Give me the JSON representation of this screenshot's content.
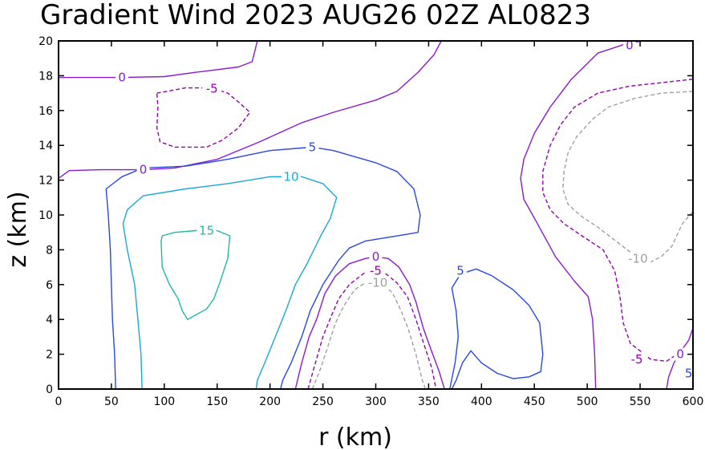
{
  "chart_data": {
    "type": "contour",
    "title": "Gradient Wind 2023 AUG26 02Z  AL0823",
    "xlabel": "r (km)",
    "ylabel": "z (km)",
    "xlim": [
      0,
      600
    ],
    "ylim": [
      0,
      20
    ],
    "xticks": [
      "0",
      "50",
      "100",
      "150",
      "200",
      "250",
      "300",
      "350",
      "400",
      "450",
      "500",
      "550",
      "600"
    ],
    "yticks": [
      "0",
      "2",
      "4",
      "6",
      "8",
      "10",
      "12",
      "14",
      "16",
      "18",
      "20"
    ],
    "grid": false,
    "colors": {
      "-10": "#a0a0a0",
      "-5": "#9400b0",
      "0": "#8a1ad0",
      "5": "#2848e0",
      "10": "#18a8d8",
      "15": "#20b8a8"
    },
    "contours": [
      {
        "level": 0,
        "label": "0",
        "dashed": false,
        "points": [
          [
            0,
            17.9
          ],
          [
            30,
            17.9
          ],
          [
            60,
            17.9
          ],
          [
            100,
            17.95
          ],
          [
            130,
            18.2
          ],
          [
            170,
            18.5
          ],
          [
            183,
            18.8
          ],
          [
            186,
            19.5
          ],
          [
            188,
            20
          ]
        ]
      },
      {
        "level": 0,
        "label": "0",
        "dashed": false,
        "points": [
          [
            0,
            12.1
          ],
          [
            10,
            12.55
          ],
          [
            40,
            12.6
          ],
          [
            80,
            12.6
          ],
          [
            110,
            12.7
          ],
          [
            150,
            13.2
          ],
          [
            190,
            14.2
          ],
          [
            230,
            15.3
          ],
          [
            260,
            15.9
          ],
          [
            300,
            16.6
          ],
          [
            320,
            17.1
          ],
          [
            340,
            18.2
          ],
          [
            355,
            19.2
          ],
          [
            362,
            20
          ]
        ]
      },
      {
        "level": -5,
        "label": "-5",
        "dashed": true,
        "points": [
          [
            93,
            17
          ],
          [
            120,
            17.3
          ],
          [
            145,
            17.3
          ],
          [
            160,
            17
          ],
          [
            170,
            16.5
          ],
          [
            181,
            15.9
          ],
          [
            170,
            15
          ],
          [
            155,
            14.3
          ],
          [
            140,
            13.9
          ],
          [
            110,
            13.9
          ],
          [
            96,
            14.2
          ],
          [
            93,
            15
          ],
          [
            94,
            16.2
          ],
          [
            93,
            17
          ]
        ]
      },
      {
        "level": 5,
        "label": "5",
        "dashed": false,
        "points": [
          [
            54,
            0
          ],
          [
            53,
            2
          ],
          [
            51,
            4
          ],
          [
            50,
            6
          ],
          [
            49,
            8
          ],
          [
            47,
            10
          ],
          [
            45,
            11.5
          ],
          [
            60,
            12.2
          ],
          [
            80,
            12.7
          ],
          [
            120,
            12.8
          ],
          [
            160,
            13.2
          ],
          [
            200,
            13.7
          ],
          [
            240,
            13.9
          ],
          [
            260,
            13.7
          ],
          [
            300,
            13.0
          ],
          [
            320,
            12.5
          ],
          [
            336,
            11.5
          ],
          [
            342,
            10
          ],
          [
            340,
            9.0
          ],
          [
            330,
            8.9
          ],
          [
            290,
            8.5
          ],
          [
            275,
            8.1
          ],
          [
            265,
            7.4
          ],
          [
            250,
            6.0
          ],
          [
            238,
            4.5
          ],
          [
            230,
            3.0
          ],
          [
            220,
            1.5
          ],
          [
            212,
            0.5
          ],
          [
            210,
            0
          ]
        ]
      },
      {
        "level": 10,
        "label": "10",
        "dashed": false,
        "points": [
          [
            79,
            0
          ],
          [
            78,
            2
          ],
          [
            75,
            4
          ],
          [
            72,
            6
          ],
          [
            65,
            8
          ],
          [
            61,
            9.5
          ],
          [
            65,
            10.3
          ],
          [
            80,
            11.1
          ],
          [
            120,
            11.5
          ],
          [
            160,
            11.8
          ],
          [
            200,
            12.2
          ],
          [
            230,
            12.2
          ],
          [
            250,
            11.8
          ],
          [
            263,
            11
          ],
          [
            257,
            9.8
          ],
          [
            248,
            8.8
          ],
          [
            235,
            7.2
          ],
          [
            224,
            6
          ],
          [
            215,
            4.5
          ],
          [
            205,
            3
          ],
          [
            195,
            1.5
          ],
          [
            188,
            0.5
          ],
          [
            187,
            0
          ]
        ]
      },
      {
        "level": 15,
        "label": "15",
        "dashed": false,
        "points": [
          [
            98,
            8.8
          ],
          [
            110,
            9
          ],
          [
            130,
            9.1
          ],
          [
            150,
            9.1
          ],
          [
            162,
            8.8
          ],
          [
            160,
            7.5
          ],
          [
            153,
            6.2
          ],
          [
            147,
            5.2
          ],
          [
            140,
            4.6
          ],
          [
            122,
            4.0
          ],
          [
            117,
            4.5
          ],
          [
            113,
            5.2
          ],
          [
            105,
            6
          ],
          [
            98,
            7
          ],
          [
            97,
            8.5
          ],
          [
            98,
            8.8
          ]
        ]
      },
      {
        "level": 0,
        "label": "0",
        "dashed": false,
        "points": [
          [
            224,
            0
          ],
          [
            230,
            1.5
          ],
          [
            237,
            3
          ],
          [
            244,
            4
          ],
          [
            252,
            5.5
          ],
          [
            262,
            6.5
          ],
          [
            275,
            7.2
          ],
          [
            290,
            7.5
          ],
          [
            300,
            7.6
          ],
          [
            312,
            7.5
          ],
          [
            322,
            7.0
          ],
          [
            332,
            6
          ],
          [
            338,
            5
          ],
          [
            345,
            3.5
          ],
          [
            352,
            2.3
          ],
          [
            360,
            1
          ],
          [
            365,
            0
          ]
        ]
      },
      {
        "level": -5,
        "label": "-5",
        "dashed": true,
        "points": [
          [
            236,
            0
          ],
          [
            242,
            1.3
          ],
          [
            250,
            3
          ],
          [
            258,
            4.2
          ],
          [
            265,
            5.2
          ],
          [
            275,
            6
          ],
          [
            290,
            6.7
          ],
          [
            300,
            6.8
          ],
          [
            310,
            6.6
          ],
          [
            320,
            6.1
          ],
          [
            330,
            5.3
          ],
          [
            338,
            4.0
          ],
          [
            346,
            2.5
          ],
          [
            353,
            1.2
          ],
          [
            357,
            0
          ]
        ]
      },
      {
        "level": -10,
        "label": "-10",
        "dashed": true,
        "points": [
          [
            240,
            0
          ],
          [
            248,
            1.2
          ],
          [
            255,
            2.5
          ],
          [
            262,
            3.8
          ],
          [
            270,
            4.8
          ],
          [
            280,
            5.7
          ],
          [
            290,
            6.1
          ],
          [
            300,
            6.2
          ],
          [
            308,
            6.0
          ],
          [
            316,
            5.5
          ],
          [
            324,
            4.5
          ],
          [
            331,
            3.4
          ],
          [
            338,
            2.0
          ],
          [
            344,
            0.5
          ],
          [
            347,
            0
          ]
        ]
      },
      {
        "level": 5,
        "label": "5",
        "dashed": false,
        "points": [
          [
            370,
            0
          ],
          [
            375,
            1.5
          ],
          [
            378,
            3
          ],
          [
            376,
            4.5
          ],
          [
            372,
            5.8
          ],
          [
            380,
            6.6
          ],
          [
            395,
            6.9
          ],
          [
            410,
            6.5
          ],
          [
            430,
            5.7
          ],
          [
            445,
            4.8
          ],
          [
            455,
            3.8
          ],
          [
            458,
            2
          ],
          [
            456,
            1
          ],
          [
            445,
            0.7
          ],
          [
            430,
            0.6
          ],
          [
            415,
            0.9
          ],
          [
            400,
            1.5
          ],
          [
            390,
            2.2
          ],
          [
            382,
            1.5
          ],
          [
            376,
            0.5
          ],
          [
            372,
            0
          ]
        ]
      },
      {
        "level": 0,
        "label": "0",
        "dashed": false,
        "points": [
          [
            552,
            20
          ],
          [
            535,
            19.8
          ],
          [
            510,
            19.3
          ],
          [
            485,
            17.8
          ],
          [
            465,
            16.2
          ],
          [
            450,
            14.7
          ],
          [
            440,
            13.2
          ],
          [
            437,
            12.1
          ],
          [
            440,
            10.9
          ],
          [
            452,
            9.6
          ],
          [
            470,
            7.6
          ],
          [
            488,
            6.2
          ],
          [
            501,
            5.3
          ],
          [
            505,
            4
          ],
          [
            507,
            2
          ],
          [
            508,
            0
          ]
        ]
      },
      {
        "level": 0,
        "label": "0",
        "dashed": false,
        "points": [
          [
            600,
            3.5
          ],
          [
            596,
            2.8
          ],
          [
            590,
            2.3
          ],
          [
            582,
            1.5
          ],
          [
            577,
            0.7
          ],
          [
            575,
            0
          ]
        ]
      },
      {
        "level": -5,
        "label": "-5",
        "dashed": true,
        "points": [
          [
            600,
            17.8
          ],
          [
            570,
            17.6
          ],
          [
            540,
            17.4
          ],
          [
            510,
            17.0
          ],
          [
            488,
            16.2
          ],
          [
            475,
            15.2
          ],
          [
            465,
            14
          ],
          [
            458,
            12.5
          ],
          [
            458,
            11.3
          ],
          [
            465,
            10.3
          ],
          [
            478,
            9.5
          ],
          [
            495,
            8.8
          ],
          [
            515,
            8
          ],
          [
            526,
            6.8
          ],
          [
            531,
            5.3
          ],
          [
            534,
            3.8
          ],
          [
            541,
            2.6
          ],
          [
            550,
            2.2
          ],
          [
            560,
            1.7
          ],
          [
            575,
            1.6
          ],
          [
            585,
            2
          ]
        ]
      },
      {
        "level": -10,
        "label": "-10",
        "dashed": true,
        "points": [
          [
            600,
            17.1
          ],
          [
            570,
            17.0
          ],
          [
            545,
            16.7
          ],
          [
            520,
            16.2
          ],
          [
            505,
            15.5
          ],
          [
            490,
            14.5
          ],
          [
            482,
            13.6
          ],
          [
            478,
            12.5
          ],
          [
            477,
            11.5
          ],
          [
            482,
            10.6
          ],
          [
            495,
            9.9
          ],
          [
            510,
            9.3
          ],
          [
            525,
            8.6
          ],
          [
            540,
            7.9
          ],
          [
            560,
            7.3
          ],
          [
            570,
            7.6
          ],
          [
            580,
            8.2
          ],
          [
            590,
            9.5
          ],
          [
            600,
            10.2
          ]
        ]
      }
    ],
    "labels": [
      {
        "text": "0",
        "x": 60,
        "y": 17.9,
        "color": "#8a1ad0"
      },
      {
        "text": "-5",
        "x": 145,
        "y": 17.25,
        "color": "#9400b0"
      },
      {
        "text": "0",
        "x": 80,
        "y": 12.6,
        "color": "#8a1ad0"
      },
      {
        "text": "5",
        "x": 240,
        "y": 13.9,
        "color": "#2848e0"
      },
      {
        "text": "10",
        "x": 220,
        "y": 12.2,
        "color": "#18a8d8"
      },
      {
        "text": "15",
        "x": 140,
        "y": 9.1,
        "color": "#20b8a8"
      },
      {
        "text": "0",
        "x": 300,
        "y": 7.6,
        "color": "#8a1ad0"
      },
      {
        "text": "-5",
        "x": 300,
        "y": 6.8,
        "color": "#9400b0"
      },
      {
        "text": "-10",
        "x": 302,
        "y": 6.1,
        "color": "#a0a0a0"
      },
      {
        "text": "5",
        "x": 380,
        "y": 6.8,
        "color": "#2848e0"
      },
      {
        "text": "0",
        "x": 540,
        "y": 19.75,
        "color": "#8a1ad0"
      },
      {
        "text": "-10",
        "x": 548,
        "y": 7.5,
        "color": "#a0a0a0"
      },
      {
        "text": "-5",
        "x": 547,
        "y": 1.7,
        "color": "#9400b0"
      },
      {
        "text": "0",
        "x": 588,
        "y": 2.0,
        "color": "#8a1ad0"
      },
      {
        "text": "5",
        "x": 596,
        "y": 0.9,
        "color": "#2848e0"
      }
    ]
  }
}
